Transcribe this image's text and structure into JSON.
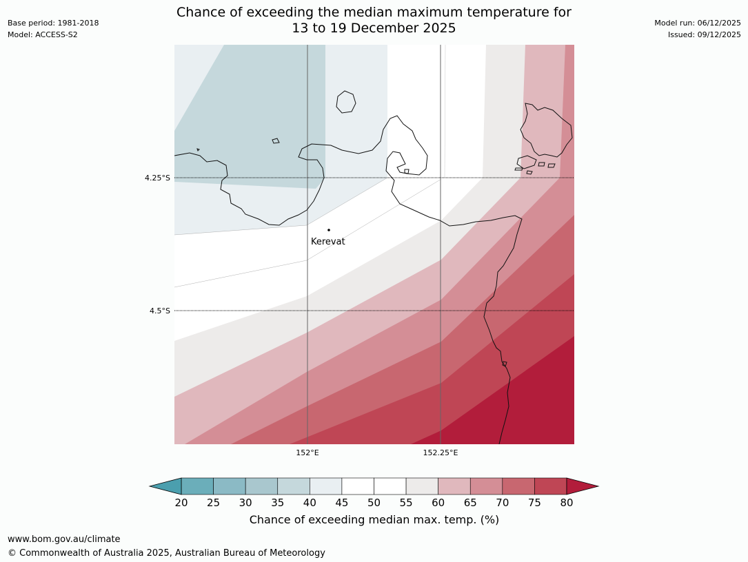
{
  "header": {
    "title_line1": "Chance of exceeding the median maximum temperature for",
    "title_line2": "13 to 19 December 2025",
    "base_period": "Base period: 1981-2018",
    "model": "Model: ACCESS-S2",
    "model_run": "Model run: 06/12/2025",
    "issued": "Issued: 09/12/2025"
  },
  "map": {
    "lat_labels": [
      "4.25°S",
      "4.5°S"
    ],
    "lon_labels": [
      "152°E",
      "152.25°E"
    ],
    "places": [
      {
        "name": "Kerevat"
      }
    ],
    "colors": {
      "band_35_40": "#c5d8dc",
      "band_40_45": "#e9eff2",
      "band_45_50": "#ffffff",
      "band_50_55": "#ffffff",
      "band_55_60": "#edebea",
      "band_60_65": "#e0b8bd",
      "band_65_70": "#d48e96",
      "band_70_75": "#c86770",
      "band_75_80": "#bf4655",
      "band_80_plus": "#b21d3b"
    }
  },
  "colorbar": {
    "label": "Chance of exceeding median max. temp. (%)",
    "ticks": [
      "20",
      "25",
      "30",
      "35",
      "40",
      "45",
      "50",
      "55",
      "60",
      "65",
      "70",
      "75",
      "80"
    ],
    "under_color": "#4b9fae",
    "over_color": "#b21d3b",
    "segment_colors": [
      "#6baeba",
      "#8bbac5",
      "#a9c7ce",
      "#c5d8dc",
      "#e9eff2",
      "#ffffff",
      "#ffffff",
      "#edebea",
      "#e0b8bd",
      "#d48e96",
      "#c86770",
      "#bf4655"
    ]
  },
  "footer": {
    "url": "www.bom.gov.au/climate",
    "copyright": "© Commonwealth of Australia 2025, Australian Bureau of Meteorology"
  }
}
